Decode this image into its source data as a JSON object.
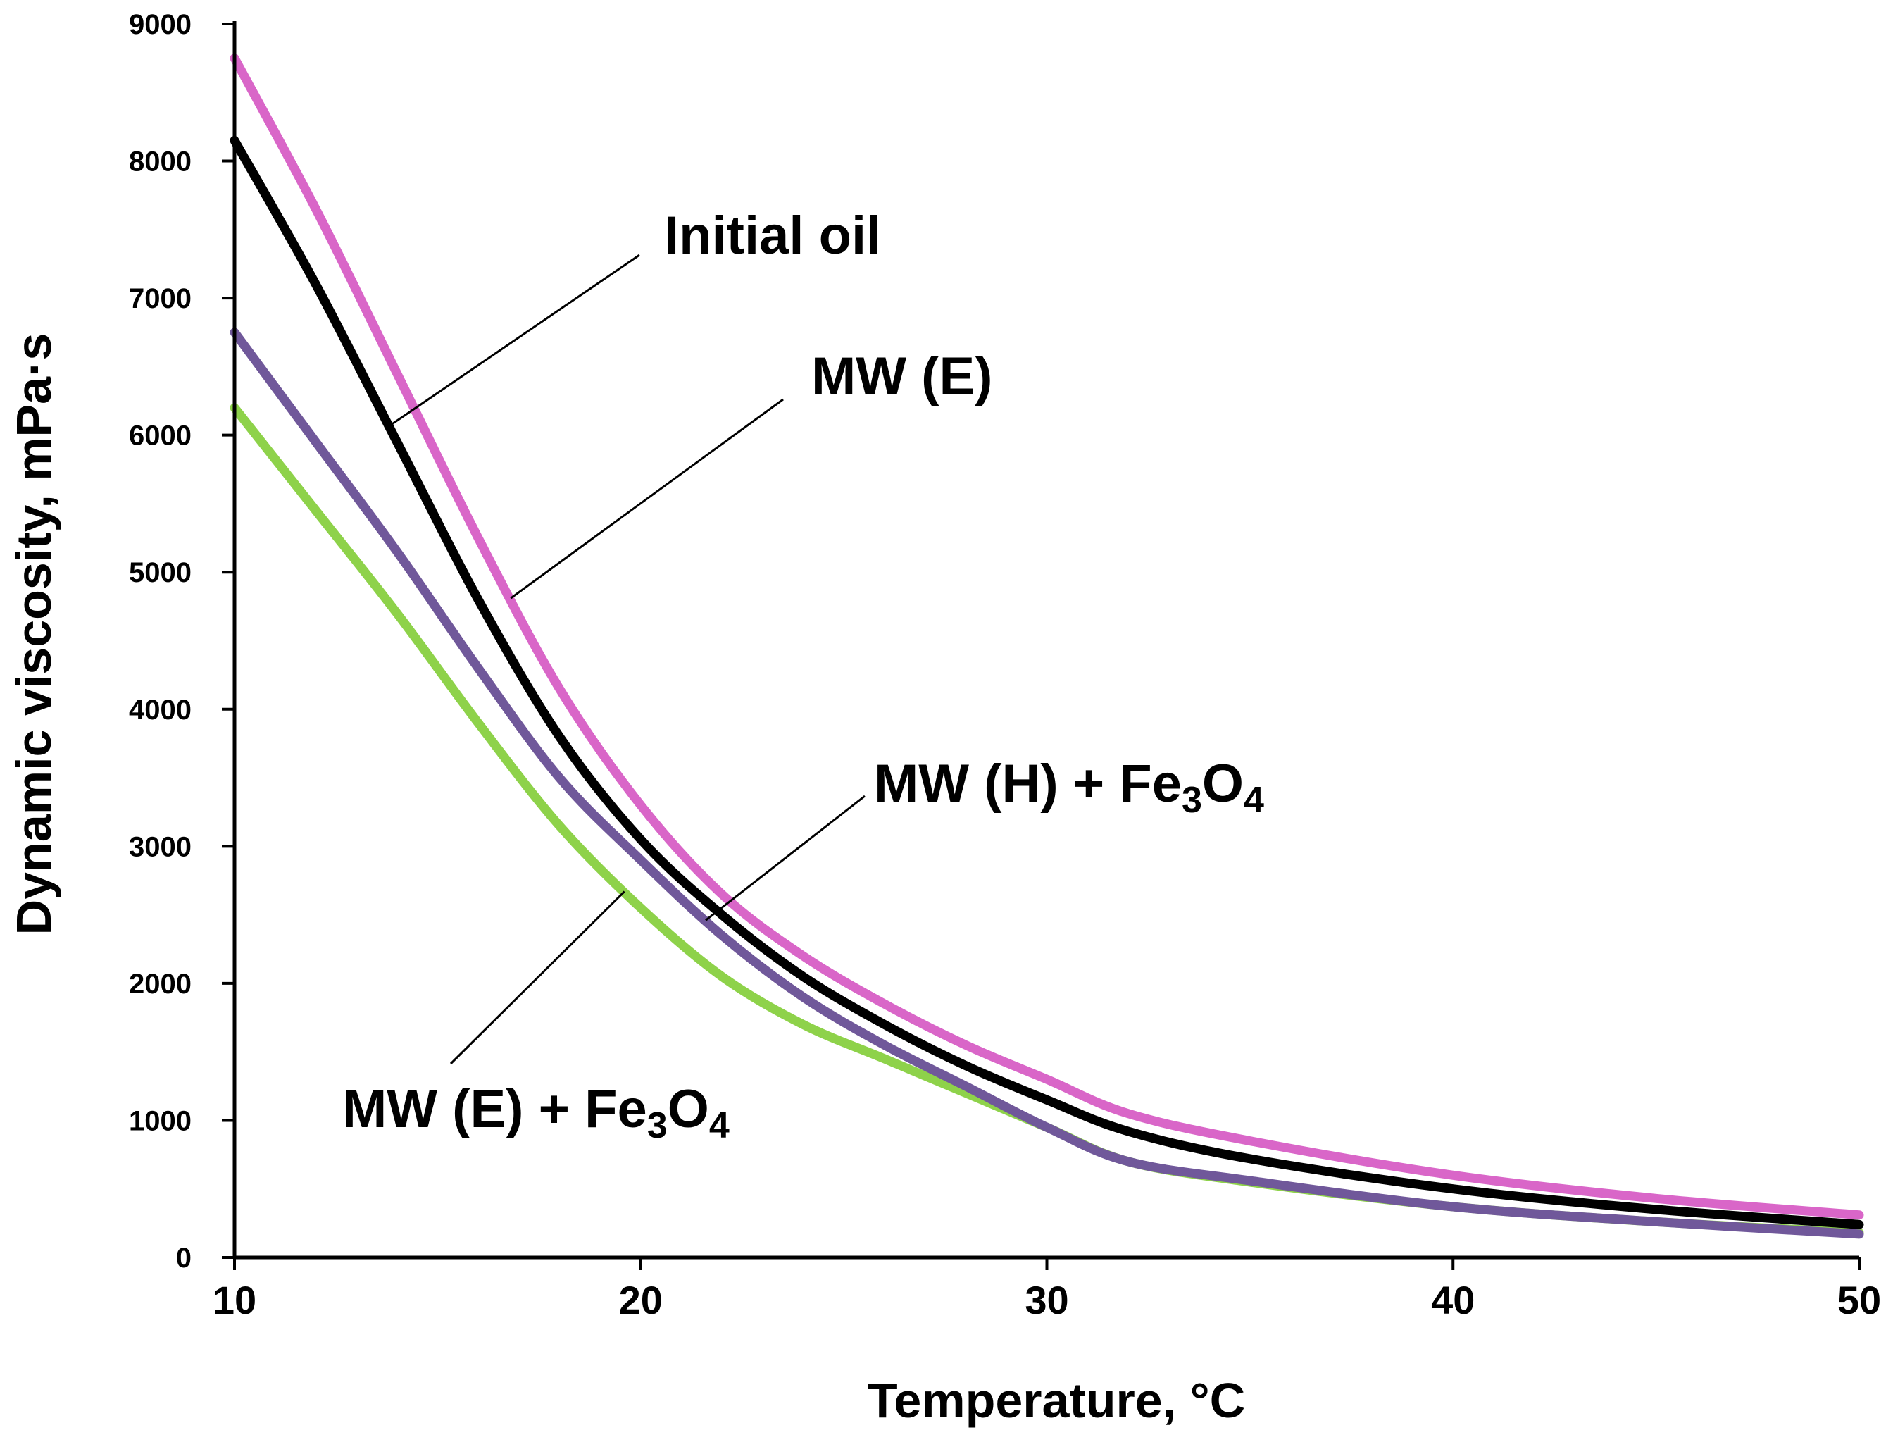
{
  "chart_data": {
    "type": "line",
    "title": "",
    "xlabel": "Temperature, °C",
    "ylabel": "Dynamic viscosity, mPa·s",
    "xlim": [
      10,
      50
    ],
    "ylim": [
      0,
      9000
    ],
    "xticks": [
      "10",
      "20",
      "30",
      "40",
      "50"
    ],
    "yticks": [
      "0",
      "1000",
      "2000",
      "3000",
      "4000",
      "5000",
      "6000",
      "7000",
      "8000",
      "9000"
    ],
    "grid": false,
    "x": [
      10,
      12,
      14,
      16,
      18,
      20,
      22,
      24,
      26,
      28,
      30,
      32,
      35,
      40,
      45,
      50
    ],
    "series": [
      {
        "name": "MW (E)",
        "color": "#d966c8",
        "values": [
          8750,
          7650,
          6450,
          5250,
          4150,
          3300,
          2650,
          2200,
          1850,
          1550,
          1300,
          1050,
          850,
          600,
          430,
          310
        ]
      },
      {
        "name": "Initial oil",
        "color": "#000000",
        "values": [
          8150,
          7100,
          5950,
          4800,
          3800,
          3050,
          2500,
          2050,
          1700,
          1400,
          1150,
          920,
          720,
          500,
          350,
          240
        ]
      },
      {
        "name": "MW (H) + Fe3O4",
        "color": "#70589a",
        "values": [
          6750,
          5950,
          5150,
          4300,
          3500,
          2900,
          2350,
          1900,
          1550,
          1250,
          950,
          700,
          560,
          370,
          260,
          170
        ]
      },
      {
        "name": "MW (E) + Fe3O4",
        "color": "#8ed24a",
        "values": [
          6200,
          5450,
          4700,
          3900,
          3150,
          2550,
          2050,
          1700,
          1450,
          1200,
          950,
          700,
          550,
          370,
          260,
          180
        ]
      }
    ],
    "annotations": [
      {
        "base": "Initial oil",
        "sub": "",
        "tail": "",
        "target_series": "Initial oil"
      },
      {
        "base": "MW (E)",
        "sub": "",
        "tail": "",
        "target_series": "MW (E)"
      },
      {
        "base": "MW (H) + Fe",
        "sub": "3",
        "tail": "O",
        "sub2": "4",
        "target_series": "MW (H) + Fe3O4"
      },
      {
        "base": "MW (E) + Fe",
        "sub": "3",
        "tail": "O",
        "sub2": "4",
        "target_series": "MW (E) + Fe3O4"
      }
    ]
  }
}
